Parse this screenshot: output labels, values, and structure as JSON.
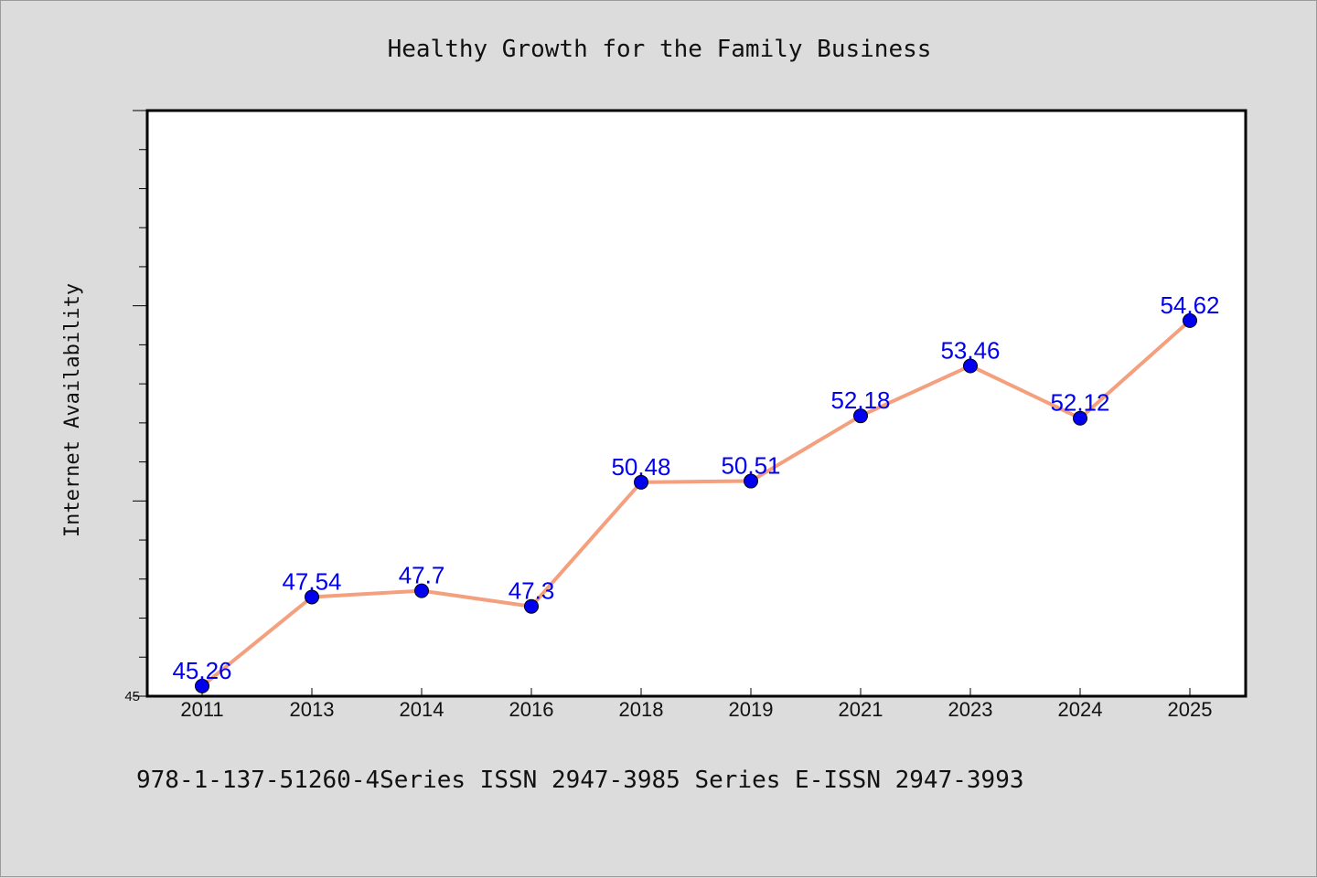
{
  "title": "Healthy Growth for the Family Business",
  "footer_text": "978-1-137-51260-4Series ISSN 2947-3985 Series E-ISSN 2947-3993",
  "colors": {
    "background": "#dcdcdc",
    "plot_background": "#ffffff",
    "line": "#f4a07e",
    "marker": "#0000ee",
    "data_label": "#0000ee"
  },
  "chart_data": {
    "type": "line",
    "title": "Healthy Growth for the Family Business",
    "xlabel": "",
    "ylabel": "Internet Availability",
    "categories": [
      "2011",
      "2013",
      "2014",
      "2016",
      "2018",
      "2019",
      "2021",
      "2023",
      "2024",
      "2025"
    ],
    "series": [
      {
        "values": [
          45.26,
          47.54,
          47.7,
          47.3,
          50.48,
          50.51,
          52.18,
          53.46,
          52.12,
          54.62
        ]
      }
    ],
    "data_labels": [
      "45.26",
      "47.54",
      "47.7",
      "47.3",
      "50.48",
      "50.51",
      "52.18",
      "53.46",
      "52.12",
      "54.62"
    ],
    "ylim": [
      45,
      60
    ],
    "y_tick_labels": [
      "45"
    ],
    "minor_tick_step": 1,
    "grid": false,
    "legend": "none"
  }
}
